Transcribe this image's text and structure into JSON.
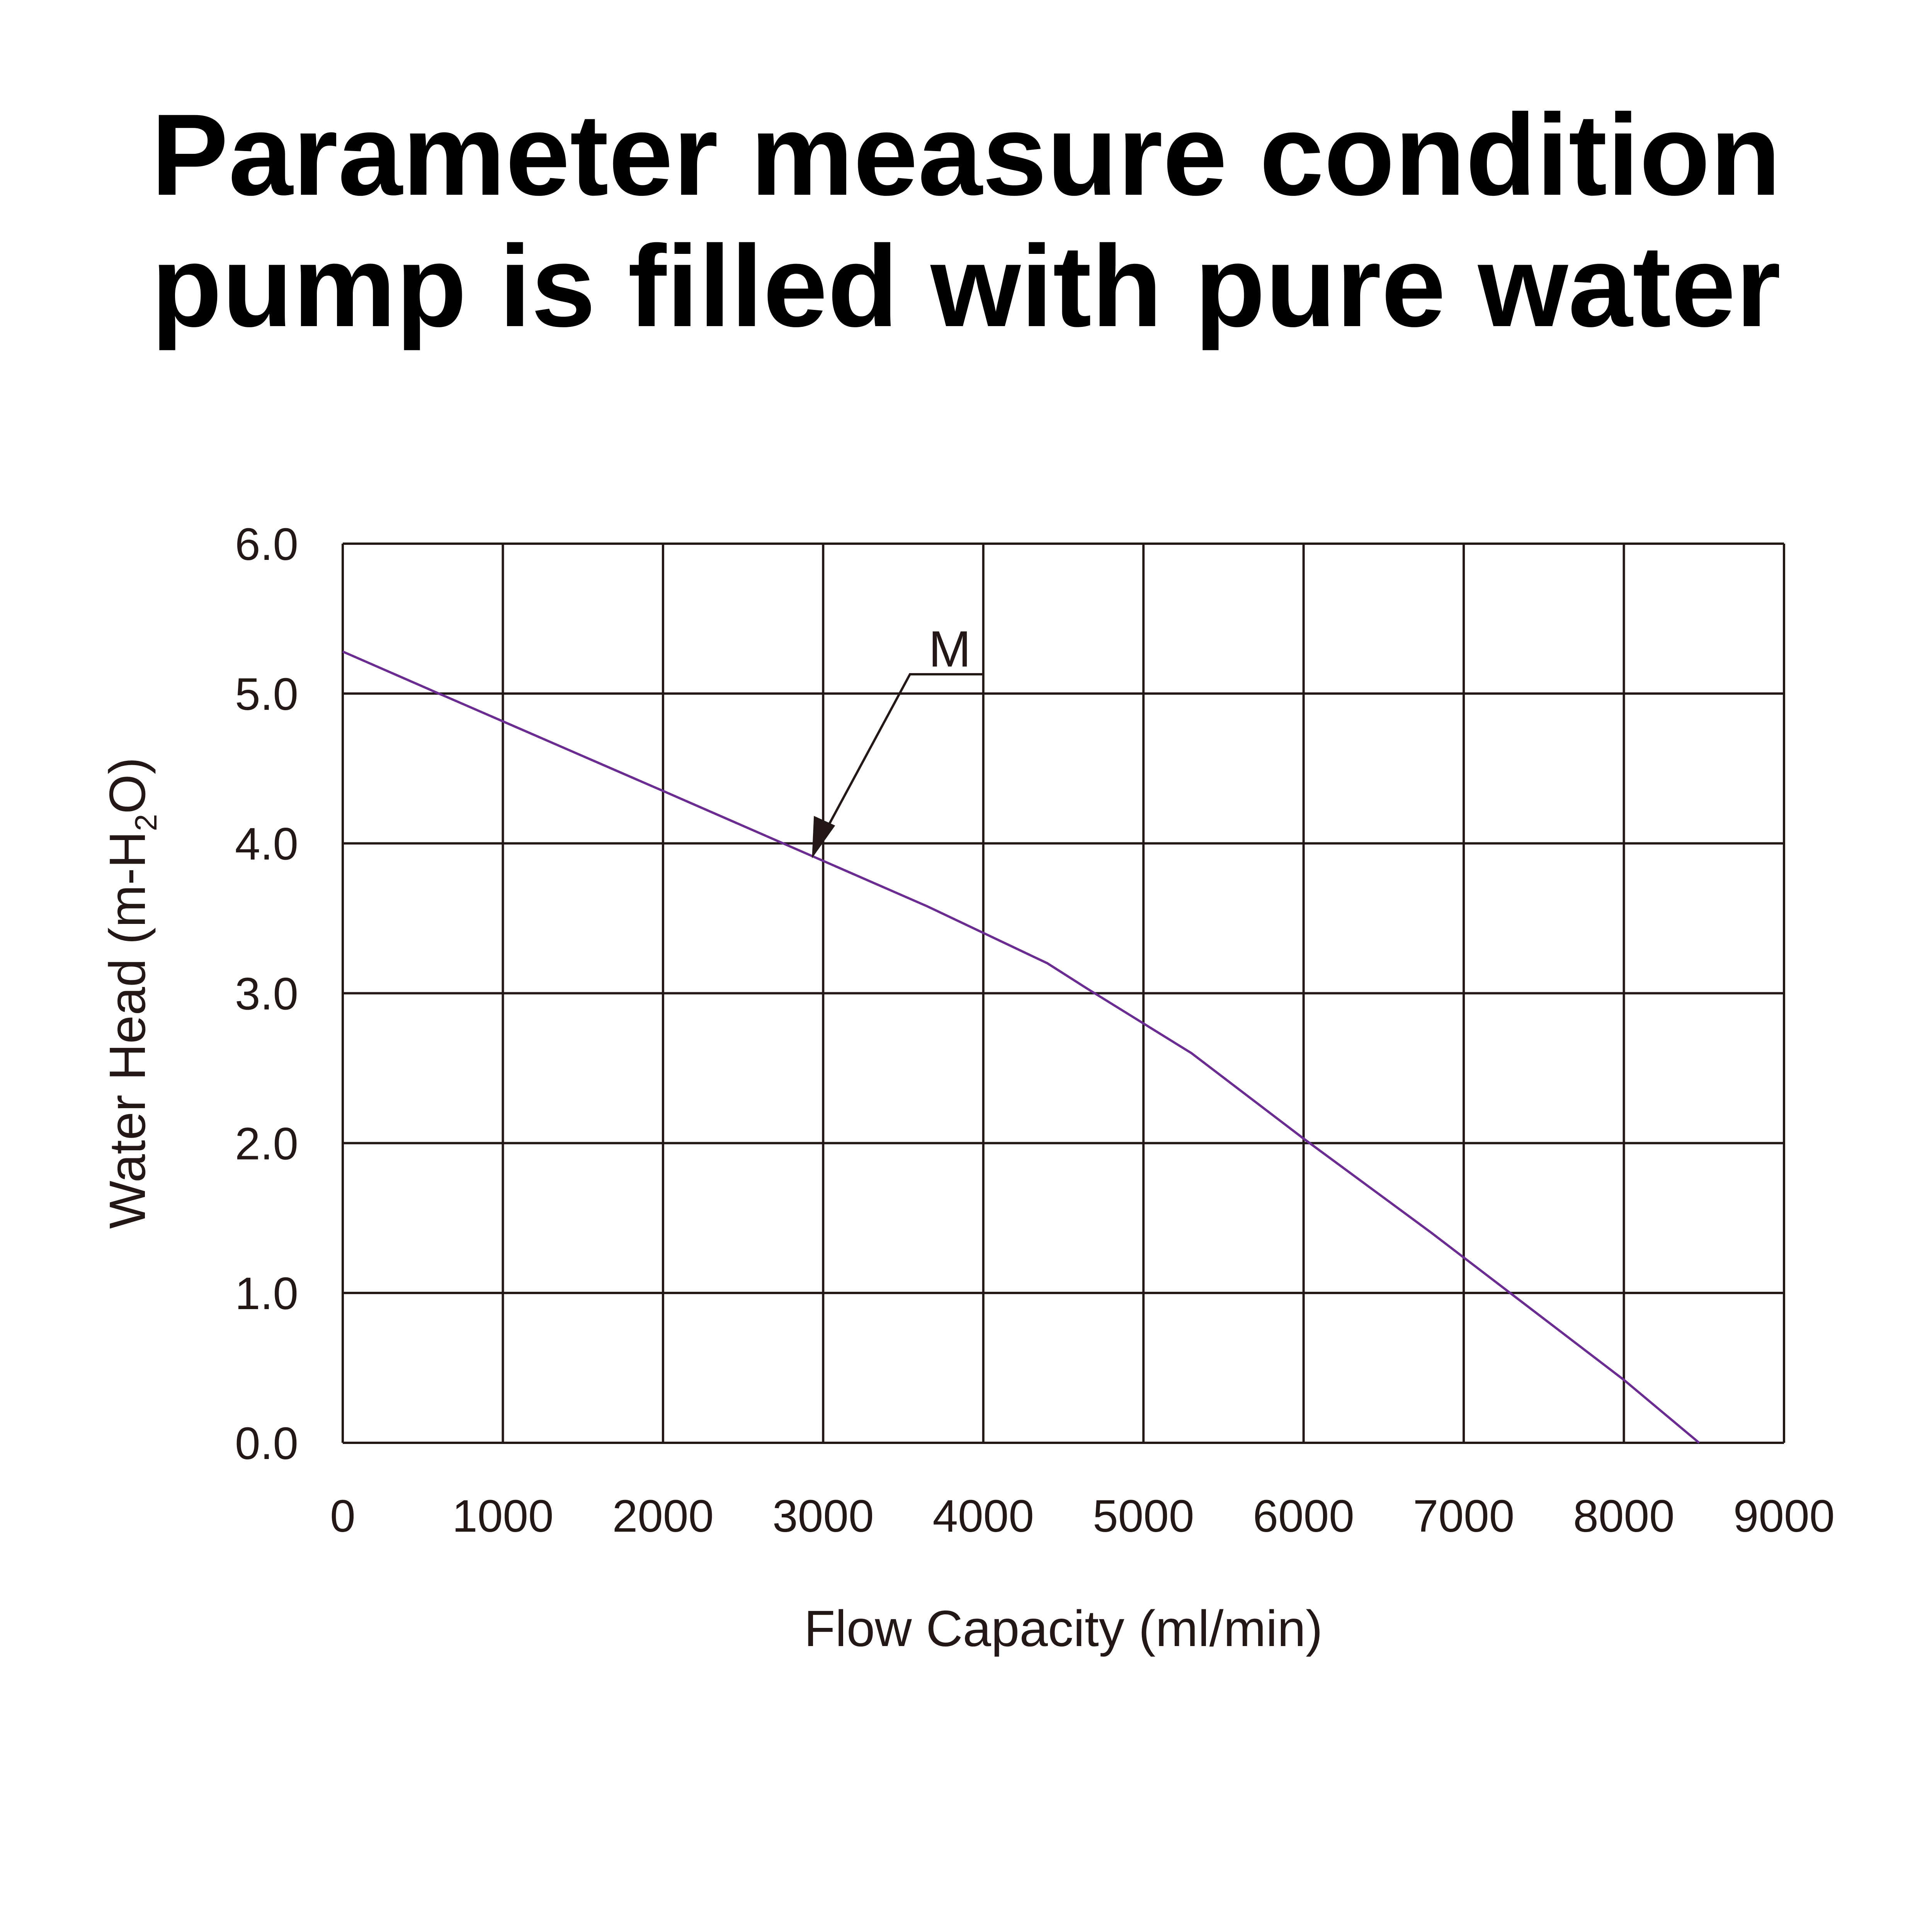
{
  "title_lines": [
    "Parameter measure condition",
    "pump is filled with pure water"
  ],
  "chart_data": {
    "type": "line",
    "title": "Parameter measure condition pump is filled with pure water",
    "xlabel": "Flow Capacity (ml/min)",
    "ylabel_parts": [
      "Water Head (m-H",
      "2",
      "O)"
    ],
    "xlim": [
      0,
      9000
    ],
    "ylim": [
      0,
      6.0
    ],
    "xticks": [
      "0",
      "1000",
      "2000",
      "3000",
      "4000",
      "5000",
      "6000",
      "7000",
      "8000",
      "9000"
    ],
    "yticks": [
      "0.0",
      "1.0",
      "2.0",
      "3.0",
      "4.0",
      "5.0",
      "6.0"
    ],
    "grid": true,
    "series": [
      {
        "name": "M",
        "color": "#6a2c91",
        "x": [
          0,
          600,
          2000,
          2750,
          3650,
          4400,
          4650,
          5300,
          6000,
          6800,
          8000,
          8470
        ],
        "y": [
          5.28,
          5.0,
          4.35,
          4.0,
          3.58,
          3.2,
          3.03,
          2.6,
          2.03,
          1.4,
          0.42,
          0.0
        ]
      }
    ],
    "annotations": [
      {
        "text": "M",
        "point": [
          2930,
          3.9
        ]
      }
    ]
  }
}
